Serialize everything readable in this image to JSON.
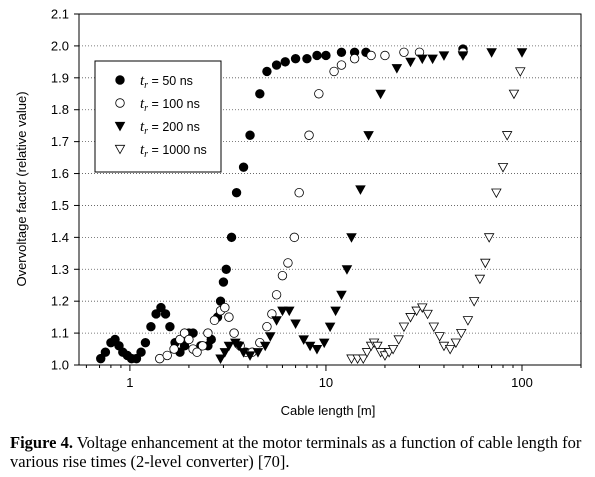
{
  "chart_data": {
    "type": "scatter",
    "xlabel": "Cable length [m]",
    "ylabel": "Overvoltage factor (relative value)",
    "xscale": "log",
    "xlim": [
      0.55,
      200
    ],
    "ylim": [
      1.0,
      2.1
    ],
    "xticks": [
      {
        "value": 1,
        "label": "1"
      },
      {
        "value": 10,
        "label": "10"
      },
      {
        "value": 100,
        "label": "100"
      }
    ],
    "yticks": [
      {
        "value": 1.0,
        "label": "1.0"
      },
      {
        "value": 1.1,
        "label": "1.1"
      },
      {
        "value": 1.2,
        "label": "1.2"
      },
      {
        "value": 1.3,
        "label": "1.3"
      },
      {
        "value": 1.4,
        "label": "1.4"
      },
      {
        "value": 1.5,
        "label": "1.5"
      },
      {
        "value": 1.6,
        "label": "1.6"
      },
      {
        "value": 1.7,
        "label": "1.7"
      },
      {
        "value": 1.8,
        "label": "1.8"
      },
      {
        "value": 1.9,
        "label": "1.9"
      },
      {
        "value": 2.0,
        "label": "2.0"
      },
      {
        "value": 2.1,
        "label": "2.1"
      }
    ],
    "grid": "horizontal-dotted",
    "legend_position": "upper-left",
    "series": [
      {
        "legend_symbol": "t",
        "legend_subscript": "r",
        "legend_suffix": " = 50 ns",
        "marker": "filled-circle",
        "points": [
          [
            0.71,
            1.02
          ],
          [
            0.75,
            1.04
          ],
          [
            0.8,
            1.07
          ],
          [
            0.84,
            1.08
          ],
          [
            0.88,
            1.06
          ],
          [
            0.92,
            1.04
          ],
          [
            0.97,
            1.03
          ],
          [
            1.02,
            1.02
          ],
          [
            1.08,
            1.02
          ],
          [
            1.14,
            1.04
          ],
          [
            1.2,
            1.07
          ],
          [
            1.28,
            1.12
          ],
          [
            1.36,
            1.16
          ],
          [
            1.44,
            1.18
          ],
          [
            1.52,
            1.16
          ],
          [
            1.6,
            1.12
          ],
          [
            1.7,
            1.07
          ],
          [
            1.8,
            1.04
          ],
          [
            1.9,
            1.06
          ],
          [
            2.0,
            1.1
          ],
          [
            2.1,
            1.1
          ],
          [
            2.3,
            1.06
          ],
          [
            2.5,
            1.06
          ],
          [
            2.6,
            1.08
          ],
          [
            2.8,
            1.15
          ],
          [
            2.9,
            1.2
          ],
          [
            3.0,
            1.26
          ],
          [
            3.1,
            1.3
          ],
          [
            3.3,
            1.4
          ],
          [
            3.5,
            1.54
          ],
          [
            3.8,
            1.62
          ],
          [
            4.1,
            1.72
          ],
          [
            4.6,
            1.85
          ],
          [
            5.0,
            1.92
          ],
          [
            5.6,
            1.94
          ],
          [
            6.2,
            1.95
          ],
          [
            7.0,
            1.96
          ],
          [
            8.0,
            1.96
          ],
          [
            9.0,
            1.97
          ],
          [
            10.0,
            1.97
          ],
          [
            12.0,
            1.98
          ],
          [
            14.0,
            1.98
          ],
          [
            16.0,
            1.98
          ],
          [
            50.0,
            1.99
          ]
        ]
      },
      {
        "legend_symbol": "t",
        "legend_subscript": "r",
        "legend_suffix": " = 100 ns",
        "marker": "open-circle",
        "points": [
          [
            1.42,
            1.02
          ],
          [
            1.55,
            1.03
          ],
          [
            1.68,
            1.05
          ],
          [
            1.8,
            1.08
          ],
          [
            1.9,
            1.1
          ],
          [
            2.0,
            1.08
          ],
          [
            2.1,
            1.05
          ],
          [
            2.2,
            1.04
          ],
          [
            2.35,
            1.06
          ],
          [
            2.5,
            1.1
          ],
          [
            2.7,
            1.14
          ],
          [
            2.9,
            1.17
          ],
          [
            3.05,
            1.18
          ],
          [
            3.2,
            1.15
          ],
          [
            3.4,
            1.1
          ],
          [
            3.65,
            1.06
          ],
          [
            3.9,
            1.04
          ],
          [
            4.2,
            1.04
          ],
          [
            4.6,
            1.07
          ],
          [
            5.0,
            1.12
          ],
          [
            5.3,
            1.16
          ],
          [
            5.6,
            1.22
          ],
          [
            6.0,
            1.28
          ],
          [
            6.4,
            1.32
          ],
          [
            6.9,
            1.4
          ],
          [
            7.3,
            1.54
          ],
          [
            8.2,
            1.72
          ],
          [
            9.2,
            1.85
          ],
          [
            11.0,
            1.92
          ],
          [
            12.0,
            1.94
          ],
          [
            14.0,
            1.96
          ],
          [
            17.0,
            1.97
          ],
          [
            20.0,
            1.97
          ],
          [
            25.0,
            1.98
          ],
          [
            30.0,
            1.98
          ],
          [
            50.0,
            1.98
          ]
        ]
      },
      {
        "legend_symbol": "t",
        "legend_subscript": "r",
        "legend_suffix": " = 200 ns",
        "marker": "filled-triangle-down",
        "points": [
          [
            2.9,
            1.02
          ],
          [
            3.05,
            1.04
          ],
          [
            3.2,
            1.06
          ],
          [
            3.45,
            1.07
          ],
          [
            3.6,
            1.06
          ],
          [
            3.8,
            1.04
          ],
          [
            4.1,
            1.03
          ],
          [
            4.5,
            1.04
          ],
          [
            4.9,
            1.06
          ],
          [
            5.2,
            1.09
          ],
          [
            5.6,
            1.14
          ],
          [
            6.0,
            1.17
          ],
          [
            6.5,
            1.17
          ],
          [
            7.0,
            1.13
          ],
          [
            7.7,
            1.08
          ],
          [
            8.3,
            1.06
          ],
          [
            9.0,
            1.05
          ],
          [
            9.8,
            1.07
          ],
          [
            10.5,
            1.12
          ],
          [
            11.2,
            1.17
          ],
          [
            12.0,
            1.22
          ],
          [
            12.8,
            1.3
          ],
          [
            13.5,
            1.4
          ],
          [
            15.0,
            1.55
          ],
          [
            16.5,
            1.72
          ],
          [
            19.0,
            1.85
          ],
          [
            23.0,
            1.93
          ],
          [
            27.0,
            1.95
          ],
          [
            31.0,
            1.96
          ],
          [
            35.0,
            1.96
          ],
          [
            40.0,
            1.97
          ],
          [
            50.0,
            1.97
          ],
          [
            70.0,
            1.98
          ],
          [
            100.0,
            1.98
          ]
        ]
      },
      {
        "legend_symbol": "t",
        "legend_subscript": "r",
        "legend_suffix": " = 1000 ns",
        "marker": "open-triangle-down",
        "points": [
          [
            13.5,
            1.02
          ],
          [
            14.5,
            1.02
          ],
          [
            15.5,
            1.02
          ],
          [
            16.2,
            1.04
          ],
          [
            17.0,
            1.06
          ],
          [
            17.6,
            1.07
          ],
          [
            18.3,
            1.06
          ],
          [
            19.0,
            1.04
          ],
          [
            20.0,
            1.03
          ],
          [
            21.0,
            1.04
          ],
          [
            22.0,
            1.05
          ],
          [
            23.5,
            1.08
          ],
          [
            25.0,
            1.12
          ],
          [
            27.0,
            1.15
          ],
          [
            29.0,
            1.17
          ],
          [
            31.0,
            1.18
          ],
          [
            33.0,
            1.16
          ],
          [
            35.5,
            1.12
          ],
          [
            38.0,
            1.09
          ],
          [
            40.0,
            1.06
          ],
          [
            43.0,
            1.05
          ],
          [
            46.0,
            1.07
          ],
          [
            49.0,
            1.1
          ],
          [
            53.0,
            1.14
          ],
          [
            57.0,
            1.2
          ],
          [
            61.0,
            1.27
          ],
          [
            65.0,
            1.32
          ],
          [
            68.0,
            1.4
          ],
          [
            74.0,
            1.54
          ],
          [
            80.0,
            1.62
          ],
          [
            84.0,
            1.72
          ],
          [
            91.0,
            1.85
          ],
          [
            98.0,
            1.92
          ]
        ]
      }
    ]
  },
  "caption": {
    "label": "Figure 4.",
    "text": " Voltage enhancement at the motor terminals as a function of cable length for various rise times (2-level converter) [70]."
  }
}
